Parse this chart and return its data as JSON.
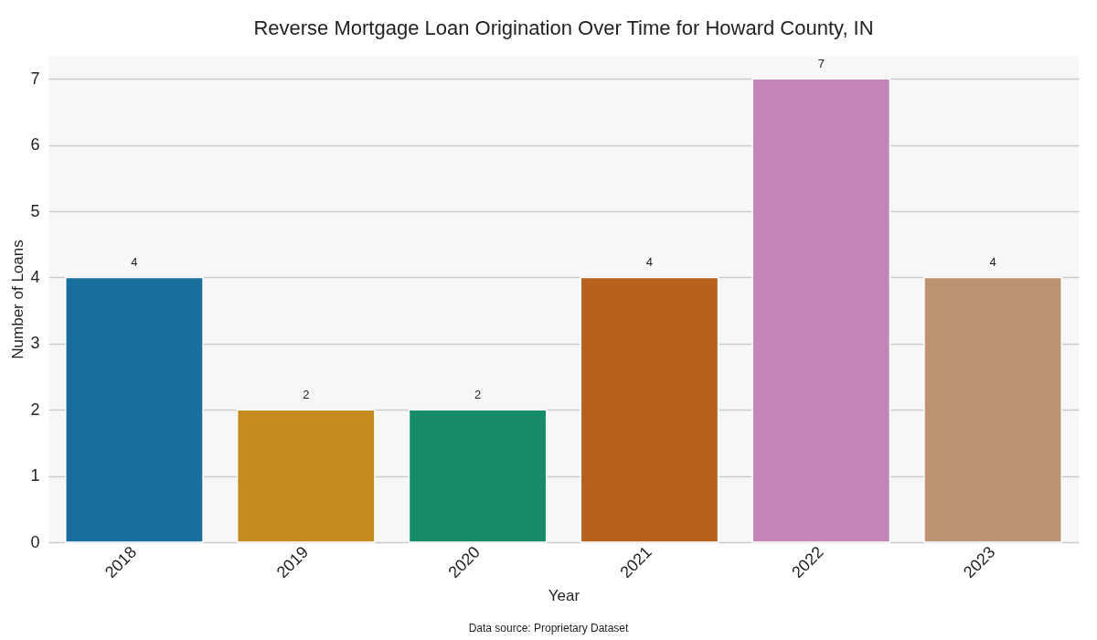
{
  "chart_data": {
    "type": "bar",
    "title": "Reverse Mortgage Loan Origination Over Time for Howard County, IN",
    "xlabel": "Year",
    "ylabel": "Number of Loans",
    "categories": [
      "2018",
      "2019",
      "2020",
      "2021",
      "2022",
      "2023"
    ],
    "values": [
      4,
      2,
      2,
      4,
      7,
      4
    ],
    "colors": [
      "#1a6e9e",
      "#c48a20",
      "#178c6b",
      "#b8611e",
      "#c384b6",
      "#bc9370"
    ],
    "ylim": [
      0,
      7.35
    ],
    "yticks": [
      0,
      1,
      2,
      3,
      4,
      5,
      6,
      7
    ],
    "grid": "y",
    "data_labels": true,
    "annotations": [
      "Data source: Proprietary Dataset"
    ]
  }
}
